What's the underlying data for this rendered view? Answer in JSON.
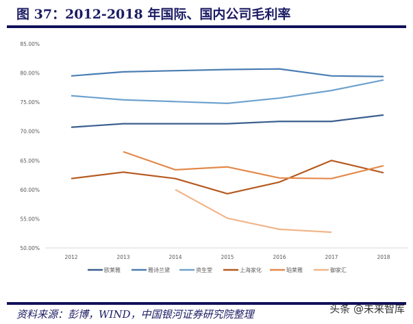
{
  "title": "图 37：2012-2018 年国际、国内公司毛利率",
  "source": "资料来源：彭博，WIND，中国银河证券研究院整理",
  "watermark": "头条 @未来智库",
  "chart_data": {
    "type": "line",
    "title": "",
    "xlabel": "",
    "ylabel": "",
    "x": [
      "2012",
      "2013",
      "2014",
      "2015",
      "2016",
      "2017",
      "2018"
    ],
    "ylim": [
      50,
      85
    ],
    "yticks": [
      "50.00%",
      "55.00%",
      "60.00%",
      "65.00%",
      "70.00%",
      "75.00%",
      "80.00%",
      "85.00%"
    ],
    "grid": false,
    "legend": "bottom",
    "series": [
      {
        "name": "欧莱雅",
        "color": "#3b5f8e",
        "values": [
          70.7,
          71.3,
          71.3,
          71.3,
          71.7,
          71.7,
          72.8
        ]
      },
      {
        "name": "雅诗兰黛",
        "color": "#4a7db3",
        "values": [
          79.5,
          80.2,
          80.4,
          80.6,
          80.7,
          79.5,
          79.4
        ]
      },
      {
        "name": "资生堂",
        "color": "#6ea2cf",
        "values": [
          76.1,
          75.4,
          75.1,
          74.8,
          75.7,
          77.0,
          78.8
        ]
      },
      {
        "name": "上海家化",
        "color": "#b5591f",
        "values": [
          61.9,
          63.0,
          61.9,
          59.3,
          61.3,
          65.0,
          62.9
        ]
      },
      {
        "name": "珀莱雅",
        "color": "#e3894a",
        "values": [
          null,
          66.5,
          63.4,
          63.9,
          62.0,
          61.9,
          64.1
        ]
      },
      {
        "name": "御家汇",
        "color": "#f0b68a",
        "values": [
          null,
          null,
          60.0,
          55.1,
          53.2,
          52.7,
          null
        ]
      }
    ]
  }
}
